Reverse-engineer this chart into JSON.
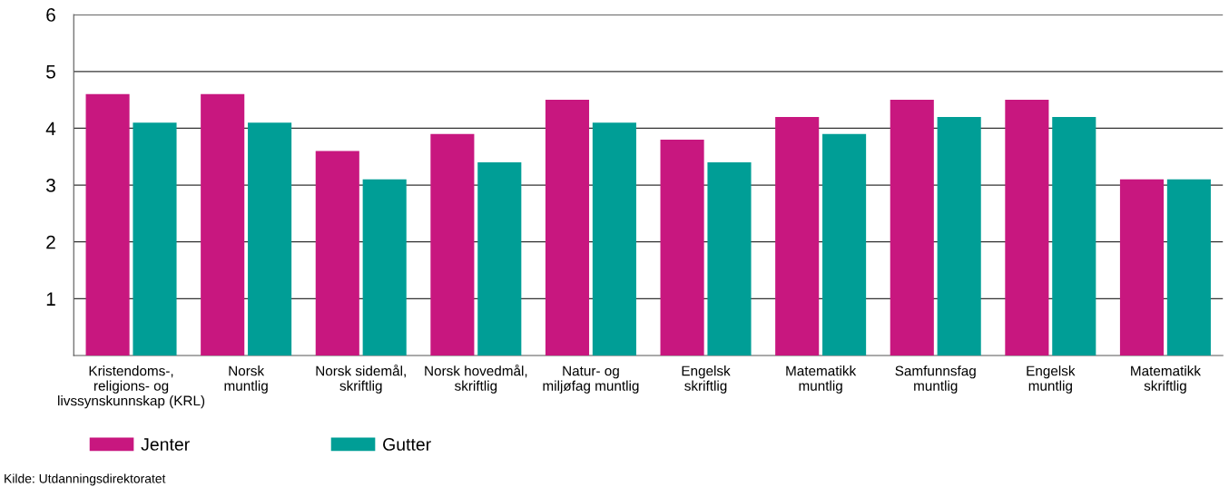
{
  "chart_data": {
    "type": "bar",
    "categories": [
      "Kristendoms-,\nreligions- og\nlivssynskunnskap (KRL)",
      "Norsk\nmuntlig",
      "Norsk sidemål,\nskriftlig",
      "Norsk hovedmål,\nskriftlig",
      "Natur- og\nmiljøfag muntlig",
      "Engelsk\nskriftlig",
      "Matematikk\nmuntlig",
      "Samfunnsfag\nmuntlig",
      "Engelsk\nmuntlig",
      "Matematikk\nskriftlig"
    ],
    "series": [
      {
        "name": "Jenter",
        "color": "#c8177f",
        "values": [
          4.6,
          4.6,
          3.6,
          3.9,
          4.5,
          3.8,
          4.2,
          4.5,
          4.5,
          3.1
        ]
      },
      {
        "name": "Gutter",
        "color": "#009e96",
        "values": [
          4.1,
          4.1,
          3.1,
          3.4,
          4.1,
          3.4,
          3.9,
          4.2,
          4.2,
          3.1
        ]
      }
    ],
    "ylim": [
      0,
      6
    ],
    "yticks": [
      1,
      2,
      3,
      4,
      5,
      6
    ],
    "grid": "y",
    "legend": "bottom left",
    "annotations": [
      "Kilde: Utdanningsdirektoratet"
    ]
  }
}
